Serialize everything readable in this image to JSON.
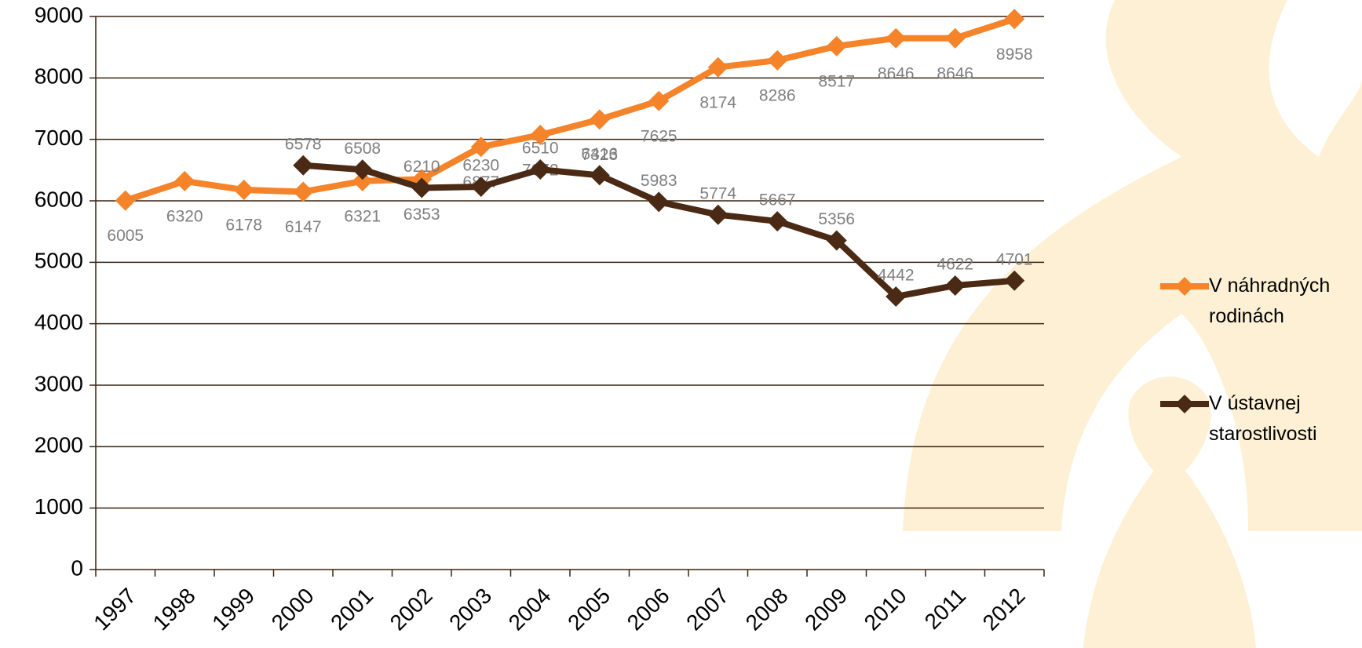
{
  "chart_data": {
    "type": "line",
    "categories": [
      "1997",
      "1998",
      "1999",
      "2000",
      "2001",
      "2002",
      "2003",
      "2004",
      "2005",
      "2006",
      "2007",
      "2008",
      "2009",
      "2010",
      "2011",
      "2012"
    ],
    "series": [
      {
        "name": "V náhradných rodinách",
        "color": "#f5832a",
        "values": [
          6005,
          6320,
          6178,
          6147,
          6321,
          6353,
          6877,
          7072,
          7323,
          7625,
          8174,
          8286,
          8517,
          8646,
          8646,
          8958
        ]
      },
      {
        "name": "V ústavnej starostlivosti",
        "color": "#4a2a14",
        "values": [
          null,
          null,
          null,
          6578,
          6508,
          6210,
          6230,
          6510,
          6416,
          5983,
          5774,
          5667,
          5356,
          4442,
          4622,
          4701
        ]
      }
    ],
    "ylim": [
      0,
      9000
    ],
    "yticks": [
      0,
      1000,
      2000,
      3000,
      4000,
      5000,
      6000,
      7000,
      8000,
      9000
    ],
    "grid": true,
    "legend": "right"
  }
}
